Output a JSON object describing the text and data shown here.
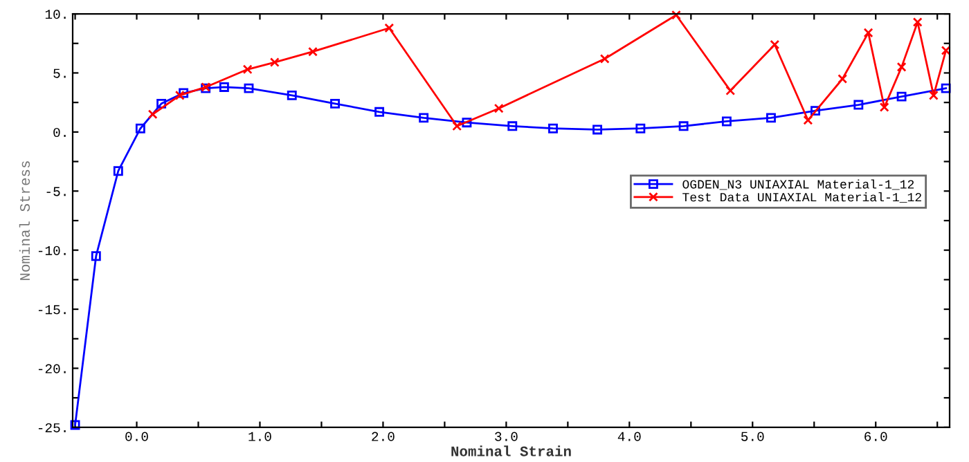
{
  "chart_data": {
    "type": "line",
    "xlabel": "Nominal Strain",
    "ylabel": "Nominal Stress",
    "series": [
      {
        "name": "OGDEN_N3 UNIAXIAL Material-1_12",
        "color": "#0000ff",
        "marker": "square",
        "x": [
          -0.5,
          -0.33,
          -0.15,
          0.03,
          0.2,
          0.38,
          0.56,
          0.71,
          0.91,
          1.26,
          1.61,
          1.97,
          2.33,
          2.68,
          3.05,
          3.38,
          3.74,
          4.09,
          4.44,
          4.79,
          5.15,
          5.51,
          5.86,
          6.21,
          6.57
        ],
        "values": [
          -24.8,
          -10.5,
          -3.3,
          0.3,
          2.4,
          3.3,
          3.7,
          3.8,
          3.7,
          3.1,
          2.4,
          1.7,
          1.2,
          0.8,
          0.5,
          0.3,
          0.2,
          0.3,
          0.5,
          0.9,
          1.2,
          1.8,
          2.3,
          3.0,
          3.7
        ]
      },
      {
        "name": "Test Data UNIAXIAL Material-1_12",
        "color": "#ff0000",
        "marker": "cross",
        "x": [
          0.13,
          0.35,
          0.56,
          0.9,
          1.12,
          1.43,
          2.05,
          2.6,
          2.94,
          3.8,
          4.38,
          4.82,
          5.18,
          5.45,
          5.73,
          5.94,
          6.07,
          6.21,
          6.34,
          6.47,
          6.57
        ],
        "values": [
          1.5,
          3.1,
          3.8,
          5.3,
          5.9,
          6.8,
          8.8,
          0.5,
          2.0,
          6.2,
          9.9,
          3.5,
          7.4,
          1.0,
          4.5,
          8.4,
          2.1,
          5.5,
          9.3,
          3.1,
          6.9
        ]
      }
    ],
    "xlim": [
      -0.52,
      6.6
    ],
    "ylim": [
      -25,
      10
    ],
    "xticks": [
      {
        "value": -0.5,
        "label": null
      },
      {
        "value": 0,
        "label": "0.0"
      },
      {
        "value": 0.5,
        "label": null
      },
      {
        "value": 1,
        "label": "1.0"
      },
      {
        "value": 1.5,
        "label": null
      },
      {
        "value": 2,
        "label": "2.0"
      },
      {
        "value": 2.5,
        "label": null
      },
      {
        "value": 3,
        "label": "3.0"
      },
      {
        "value": 3.5,
        "label": null
      },
      {
        "value": 4,
        "label": "4.0"
      },
      {
        "value": 4.5,
        "label": null
      },
      {
        "value": 5,
        "label": "5.0"
      },
      {
        "value": 5.5,
        "label": null
      },
      {
        "value": 6,
        "label": "6.0"
      },
      {
        "value": 6.5,
        "label": null
      }
    ],
    "yticks": [
      {
        "value": -25,
        "label": "-25."
      },
      {
        "value": -22.5,
        "label": null
      },
      {
        "value": -20,
        "label": "-20."
      },
      {
        "value": -17.5,
        "label": null
      },
      {
        "value": -15,
        "label": "-15."
      },
      {
        "value": -12.5,
        "label": null
      },
      {
        "value": -10,
        "label": "-10."
      },
      {
        "value": -7.5,
        "label": null
      },
      {
        "value": -5,
        "label": "-5."
      },
      {
        "value": -2.5,
        "label": null
      },
      {
        "value": 0,
        "label": "0."
      },
      {
        "value": 2.5,
        "label": null
      },
      {
        "value": 5,
        "label": "5."
      },
      {
        "value": 7.5,
        "label": null
      },
      {
        "value": 10,
        "label": "10."
      }
    ],
    "grid": false,
    "legend": "right",
    "line_style": "solid"
  }
}
